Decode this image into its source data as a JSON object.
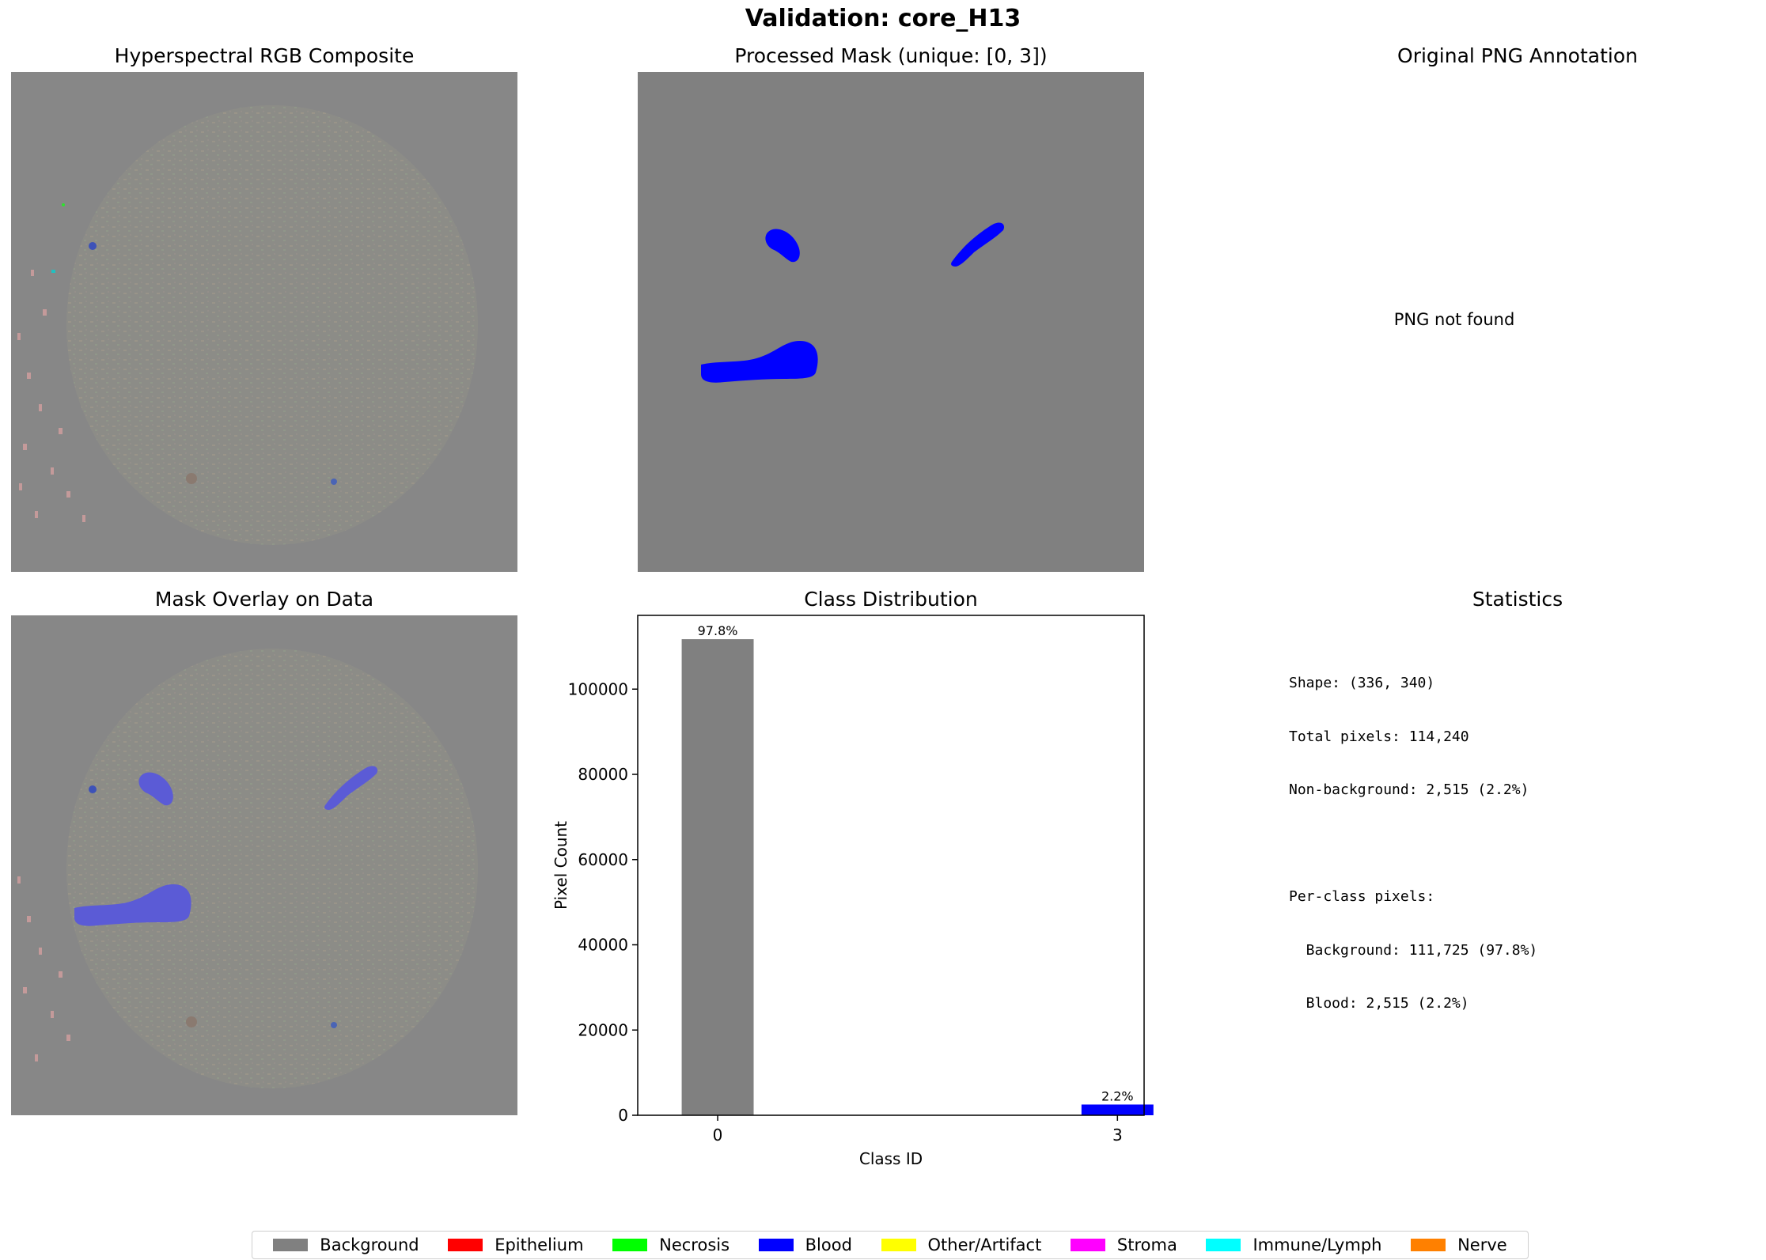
{
  "figure": {
    "title": "Validation: core_H13"
  },
  "panels": {
    "rgb_title": "Hyperspectral RGB Composite",
    "mask_title": "Processed Mask (unique: [0, 3])",
    "png_title": "Original PNG Annotation",
    "png_message": "PNG not found",
    "overlay_title": "Mask Overlay on Data",
    "stats_title": "Statistics"
  },
  "statistics": {
    "lines": [
      "Shape: (336, 340)",
      "Total pixels: 114,240",
      "Non-background: 2,515 (2.2%)",
      "",
      "Per-class pixels:",
      "  Background: 111,725 (97.8%)",
      "  Blood: 2,515 (2.2%)"
    ]
  },
  "legend": {
    "items": [
      {
        "label": "Background",
        "color": "#808080"
      },
      {
        "label": "Epithelium",
        "color": "#ff0000"
      },
      {
        "label": "Necrosis",
        "color": "#00ff00"
      },
      {
        "label": "Blood",
        "color": "#0000ff"
      },
      {
        "label": "Other/Artifact",
        "color": "#ffff00"
      },
      {
        "label": "Stroma",
        "color": "#ff00ff"
      },
      {
        "label": "Immune/Lymph",
        "color": "#00ffff"
      },
      {
        "label": "Nerve",
        "color": "#ff8000"
      }
    ]
  },
  "chart_data": {
    "type": "bar",
    "title": "Class Distribution",
    "xlabel": "Class ID",
    "ylabel": "Pixel Count",
    "categories": [
      "0",
      "3"
    ],
    "values": [
      111725,
      2515
    ],
    "colors": [
      "#808080",
      "#0000ff"
    ],
    "data_labels": [
      "97.8%",
      "2.2%"
    ],
    "yticks": [
      0,
      20000,
      40000,
      60000,
      80000,
      100000
    ],
    "ylim": [
      0,
      117311
    ],
    "grid": false,
    "legend": "bottom-center"
  }
}
